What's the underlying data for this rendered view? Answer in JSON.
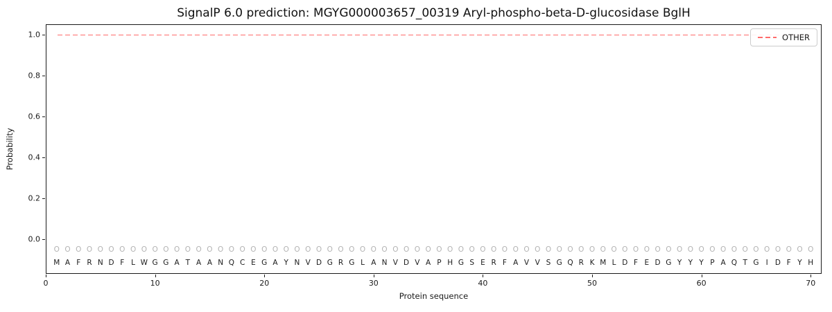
{
  "chart_data": {
    "type": "line",
    "title": "SignalP 6.0 prediction: MGYG000003657_00319 Aryl-phospho-beta-D-glucosidase BglH",
    "xlabel": "Protein sequence",
    "ylabel": "Probability",
    "xlim": [
      0,
      71
    ],
    "ylim": [
      -0.17,
      1.05
    ],
    "grid": false,
    "x_ticks": [
      {
        "value": 0,
        "label": "0"
      },
      {
        "value": 10,
        "label": "10"
      },
      {
        "value": 20,
        "label": "20"
      },
      {
        "value": 30,
        "label": "30"
      },
      {
        "value": 40,
        "label": "40"
      },
      {
        "value": 50,
        "label": "50"
      },
      {
        "value": 60,
        "label": "60"
      },
      {
        "value": 70,
        "label": "70"
      }
    ],
    "y_ticks": [
      {
        "value": 0.0,
        "label": "0.0"
      },
      {
        "value": 0.2,
        "label": "0.2"
      },
      {
        "value": 0.4,
        "label": "0.4"
      },
      {
        "value": 0.6,
        "label": "0.6"
      },
      {
        "value": 0.8,
        "label": "0.8"
      },
      {
        "value": 1.0,
        "label": "1.0"
      }
    ],
    "series": [
      {
        "name": "OTHER",
        "type": "line",
        "style": "dashed",
        "color": "#ff6b6b",
        "x_start": 1,
        "x_end": 70,
        "y_value": 1.0
      }
    ],
    "legend": {
      "position": "upper right",
      "entries": [
        {
          "label": "OTHER",
          "color": "#ff6b6b",
          "style": "dashed"
        }
      ]
    },
    "sequence": "MAFRNDFLWGGATAANQCEGAYNVDGRGLANVDVAPHGSERFAVVSGQRKMLDFEDGYYYPAQTGIDFYH",
    "position_marker": "O",
    "marker_y": -0.05,
    "letter_y": -0.115,
    "marker_color": "#b3b3b3",
    "letter_color": "#1a1a1a"
  }
}
